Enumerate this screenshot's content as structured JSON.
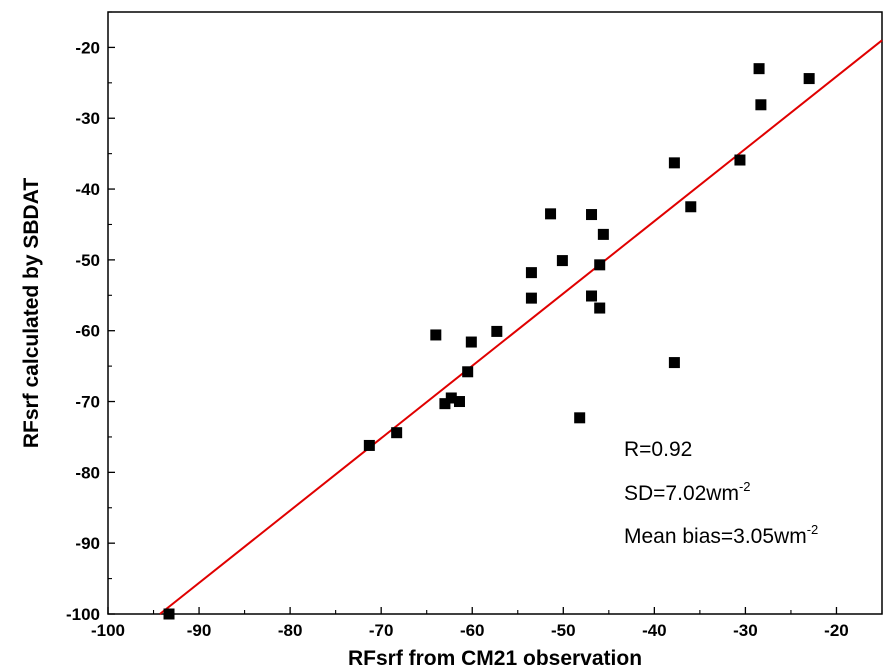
{
  "chart_data": {
    "type": "scatter",
    "title": "",
    "xlabel": "RFsrf from CM21 observation",
    "ylabel": "RFsrf calculated by SBDAT",
    "xlim": [
      -100,
      -15
    ],
    "ylim": [
      -100,
      -15
    ],
    "x_ticks": [
      -100,
      -90,
      -80,
      -70,
      -60,
      -50,
      -40,
      -30,
      -20
    ],
    "y_ticks": [
      -100,
      -90,
      -80,
      -70,
      -60,
      -50,
      -40,
      -30,
      -20
    ],
    "grid": false,
    "points": [
      {
        "x": -93.3,
        "y": -100.0
      },
      {
        "x": -71.3,
        "y": -76.2
      },
      {
        "x": -68.3,
        "y": -74.4
      },
      {
        "x": -64.0,
        "y": -60.6
      },
      {
        "x": -63.0,
        "y": -70.3
      },
      {
        "x": -62.3,
        "y": -69.5
      },
      {
        "x": -61.4,
        "y": -70.0
      },
      {
        "x": -60.5,
        "y": -65.8
      },
      {
        "x": -60.1,
        "y": -61.6
      },
      {
        "x": -57.3,
        "y": -60.1
      },
      {
        "x": -53.5,
        "y": -51.8
      },
      {
        "x": -53.5,
        "y": -55.4
      },
      {
        "x": -51.4,
        "y": -43.5
      },
      {
        "x": -50.1,
        "y": -50.1
      },
      {
        "x": -48.2,
        "y": -72.3
      },
      {
        "x": -46.9,
        "y": -43.6
      },
      {
        "x": -46.9,
        "y": -55.1
      },
      {
        "x": -46.0,
        "y": -56.8
      },
      {
        "x": -46.0,
        "y": -50.7
      },
      {
        "x": -45.6,
        "y": -46.4
      },
      {
        "x": -37.8,
        "y": -36.3
      },
      {
        "x": -37.8,
        "y": -64.5
      },
      {
        "x": -36.0,
        "y": -42.5
      },
      {
        "x": -30.6,
        "y": -35.9
      },
      {
        "x": -28.5,
        "y": -23.0
      },
      {
        "x": -28.3,
        "y": -28.1
      },
      {
        "x": -23.0,
        "y": -24.4
      }
    ],
    "fit_line": {
      "x": [
        -94.3,
        -15.0
      ],
      "y": [
        -100.0,
        -19.0
      ],
      "color": "#e00000"
    },
    "point_color": "#000000",
    "annotations": {
      "r": "R=0.92",
      "sd_text": "SD=7.02wm",
      "sd_sup": "-2",
      "bias_text": "Mean bias=3.05wm",
      "bias_sup": "-2"
    }
  }
}
